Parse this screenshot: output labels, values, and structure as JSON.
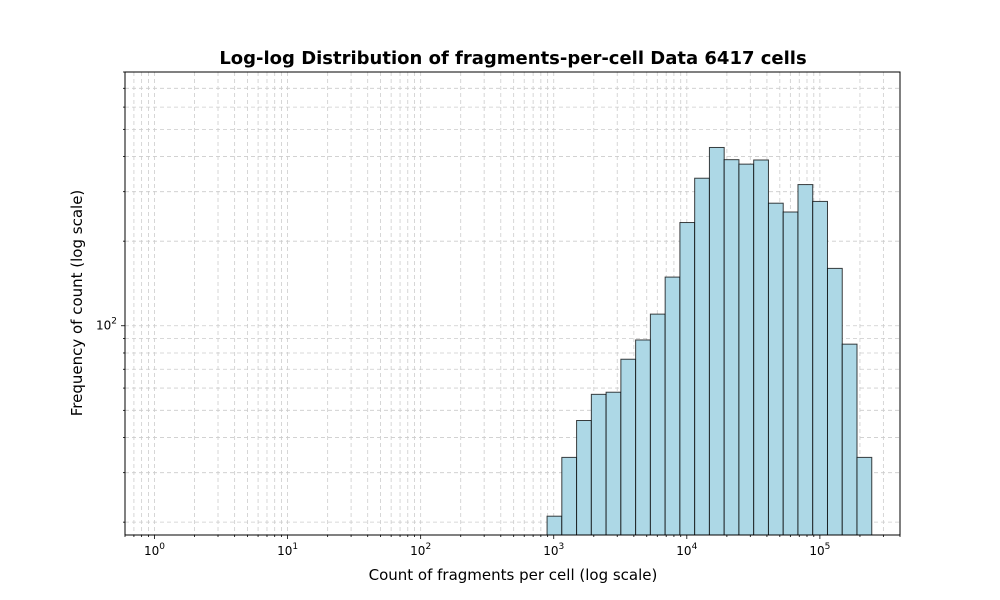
{
  "chart_data": {
    "type": "bar",
    "title": "Log-log Distribution of fragments-per-cell Data 6417 cells",
    "xlabel": "Count of fragments per cell (log scale)",
    "ylabel": "Frequency of count (log scale)",
    "x_scale": "log",
    "y_scale": "log",
    "xlim": [
      0.6,
      400000
    ],
    "ylim": [
      18,
      800
    ],
    "grid": true,
    "x_ticks": [
      {
        "value": 1,
        "base": "10",
        "exp": "0"
      },
      {
        "value": 10,
        "base": "10",
        "exp": "1"
      },
      {
        "value": 100,
        "base": "10",
        "exp": "2"
      },
      {
        "value": 1000,
        "base": "10",
        "exp": "3"
      },
      {
        "value": 10000,
        "base": "10",
        "exp": "4"
      },
      {
        "value": 100000,
        "base": "10",
        "exp": "5"
      }
    ],
    "y_ticks": [
      {
        "value": 100,
        "base": "10",
        "exp": "2"
      }
    ],
    "bin_edges": [
      891,
      1150,
      1485,
      1917,
      2475,
      3195,
      4125,
      5325,
      6874,
      8874,
      11456,
      14789,
      19091,
      24645,
      31816,
      41072,
      53021,
      68447,
      88360,
      114067,
      147253,
      190094,
      245400
    ],
    "values": [
      21,
      34,
      46,
      57,
      58,
      76,
      89,
      110,
      149,
      233,
      335,
      431,
      390,
      376,
      389,
      273,
      254,
      318,
      277,
      160,
      86,
      34
    ],
    "bar_color": "#add8e6",
    "edge_color": "#000000"
  }
}
